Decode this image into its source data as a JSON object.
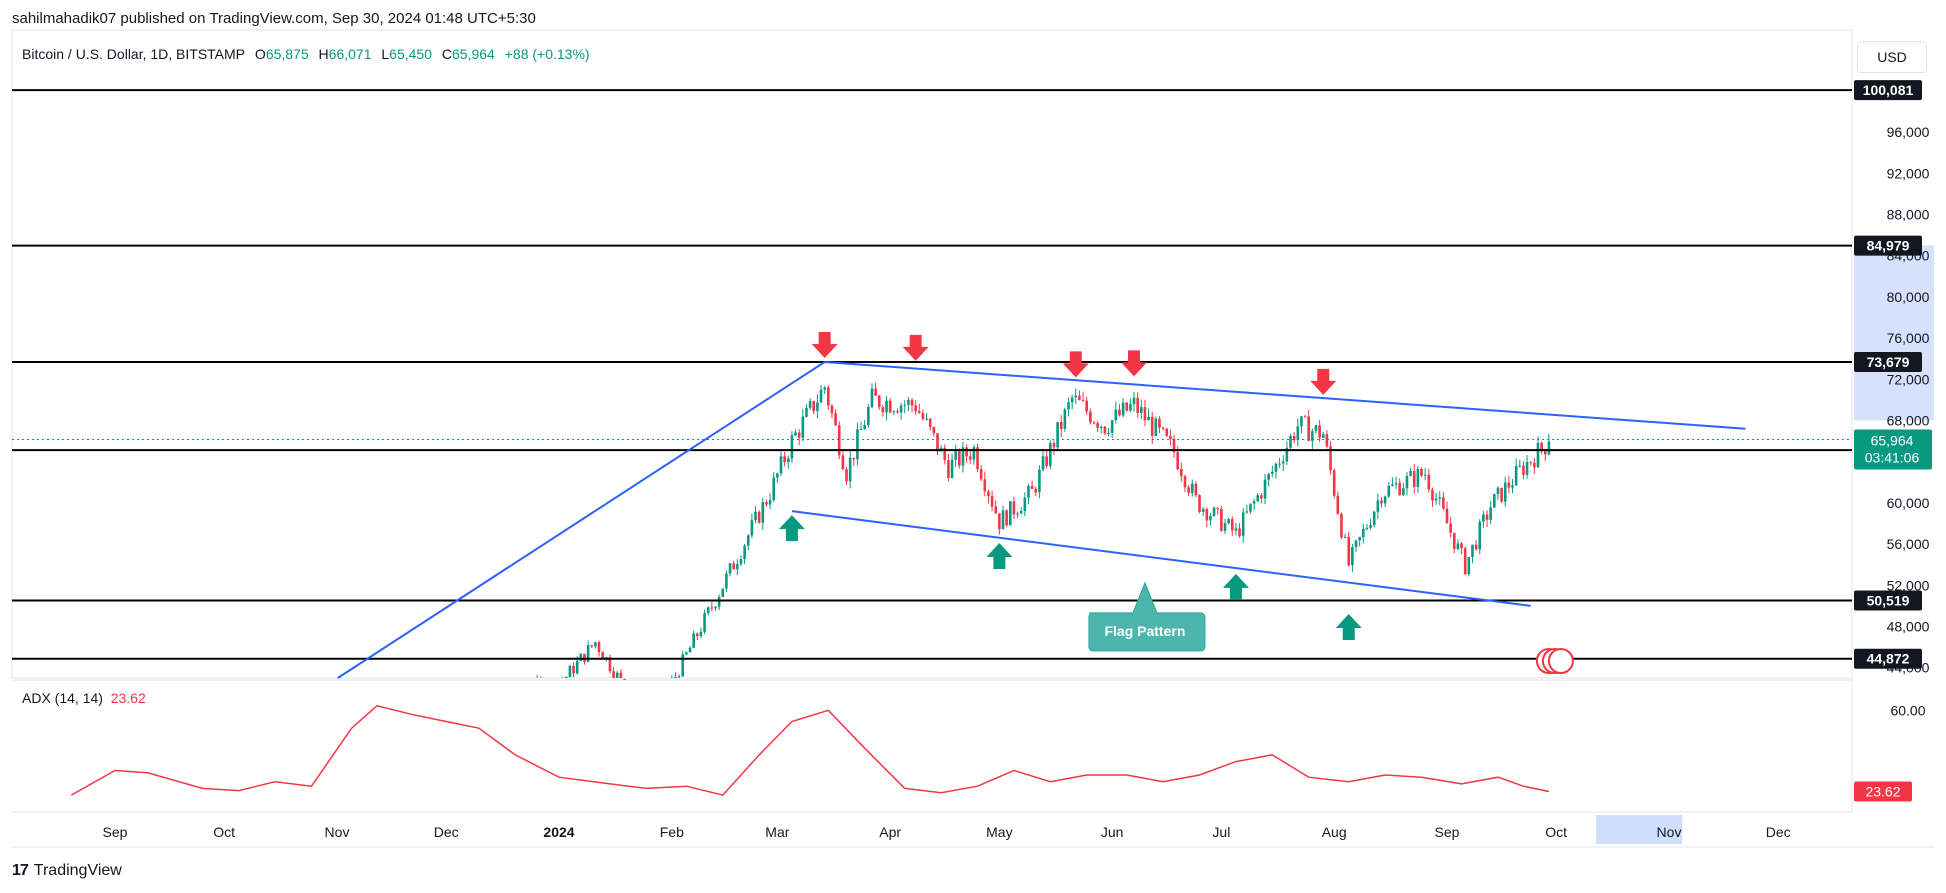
{
  "header": {
    "published": "sahilmahadik07 published on TradingView.com, Sep 30, 2024 01:48 UTC+5:30"
  },
  "legend": {
    "symbol": "Bitcoin / U.S. Dollar, 1D, BITSTAMP",
    "open_label": "O",
    "open": "65,875",
    "high_label": "H",
    "high": "66,071",
    "low_label": "L",
    "low": "65,450",
    "close_label": "C",
    "close": "65,964",
    "change": "+88 (+0.13%)"
  },
  "currency": "USD",
  "indicator": {
    "name": "ADX (14, 14)",
    "value": "23.62"
  },
  "footer": {
    "logo": "17",
    "brand": "TradingView"
  },
  "colors": {
    "up": "#089981",
    "down": "#f23645",
    "trendline": "#2962ff",
    "level": "#000000",
    "adx": "#f23645",
    "label_bg": "#131722",
    "flag_box": "#4db6ac",
    "highlight": "#c5d4fb"
  },
  "chart_data": {
    "type": "line",
    "title": "Bitcoin / U.S. Dollar, 1D, BITSTAMP",
    "x_ticks": [
      "Sep",
      "Oct",
      "Nov",
      "Dec",
      "2024",
      "Feb",
      "Mar",
      "Apr",
      "May",
      "Jun",
      "Jul",
      "Aug",
      "Sep",
      "Oct",
      "Nov",
      "Dec"
    ],
    "y_ticks": [
      "96,000",
      "92,000",
      "88,000",
      "84,000",
      "80,000",
      "76,000",
      "72,000",
      "68,000",
      "60,000",
      "56,000",
      "52,000",
      "48,000",
      "44,000"
    ],
    "ylim": [
      43000,
      103000
    ],
    "price_series": {
      "name": "BTCUSD",
      "x": [
        "2023-12-01",
        "2023-12-15",
        "2024-01-01",
        "2024-01-11",
        "2024-01-23",
        "2024-02-01",
        "2024-02-15",
        "2024-02-28",
        "2024-03-05",
        "2024-03-14",
        "2024-03-20",
        "2024-03-27",
        "2024-04-08",
        "2024-04-17",
        "2024-04-24",
        "2024-05-01",
        "2024-05-10",
        "2024-05-21",
        "2024-05-30",
        "2024-06-07",
        "2024-06-18",
        "2024-06-24",
        "2024-07-05",
        "2024-07-15",
        "2024-07-22",
        "2024-07-29",
        "2024-08-05",
        "2024-08-14",
        "2024-08-26",
        "2024-09-06",
        "2024-09-13",
        "2024-09-22",
        "2024-09-29"
      ],
      "close": [
        38700,
        41900,
        42300,
        46500,
        39800,
        42500,
        52000,
        61000,
        66000,
        71300,
        63000,
        70000,
        69500,
        63500,
        65200,
        58200,
        61000,
        70100,
        67500,
        69500,
        65000,
        60200,
        57000,
        63000,
        67500,
        66700,
        54000,
        61000,
        62900,
        53900,
        59700,
        63500,
        65964
      ]
    },
    "levels": [
      {
        "name": "level-100081",
        "value": 100081,
        "label": "100,081"
      },
      {
        "name": "level-84979",
        "value": 84979,
        "label": "84,979"
      },
      {
        "name": "level-73679",
        "value": 73679,
        "label": "73,679"
      },
      {
        "name": "level-65120",
        "value": 65120,
        "label": "65,120"
      },
      {
        "name": "level-50519",
        "value": 50519,
        "label": "50,519"
      },
      {
        "name": "level-44872",
        "value": 44872,
        "label": "44,872"
      }
    ],
    "last_price": {
      "value": 65964,
      "label": "65,964",
      "countdown": "03:41:06"
    },
    "trendlines": [
      {
        "name": "rally-trendline",
        "from": [
          "2023-10-20",
          40200
        ],
        "to": [
          "2024-03-14",
          73679
        ]
      },
      {
        "name": "flag-upper-trendline",
        "from": [
          "2024-03-14",
          73679
        ],
        "to": [
          "2024-11-22",
          67200
        ]
      },
      {
        "name": "flag-lower-trendline",
        "from": [
          "2024-03-05",
          59200
        ],
        "to": [
          "2024-09-24",
          50000
        ]
      }
    ],
    "annotation": {
      "label": "Flag Pattern",
      "date": "2024-06-10",
      "value": 50000
    },
    "down_arrows": [
      {
        "date": "2024-03-14",
        "value": 73679
      },
      {
        "date": "2024-04-08",
        "value": 73400
      },
      {
        "date": "2024-05-22",
        "value": 71800
      },
      {
        "date": "2024-06-07",
        "value": 71900
      },
      {
        "date": "2024-07-29",
        "value": 70100
      }
    ],
    "up_arrows": [
      {
        "date": "2024-03-05",
        "value": 59200
      },
      {
        "date": "2024-05-01",
        "value": 56500
      },
      {
        "date": "2024-07-05",
        "value": 53500
      },
      {
        "date": "2024-08-05",
        "value": 49600
      }
    ],
    "adx_series": {
      "name": "ADX (14, 14)",
      "ylim": [
        18,
        70
      ],
      "y_ticks": [
        "60.00"
      ],
      "x": [
        "2023-08-20",
        "2023-09-01",
        "2023-09-10",
        "2023-09-25",
        "2023-10-05",
        "2023-10-15",
        "2023-10-25",
        "2023-11-05",
        "2023-11-12",
        "2023-11-22",
        "2023-12-01",
        "2023-12-10",
        "2023-12-20",
        "2024-01-01",
        "2024-01-15",
        "2024-01-25",
        "2024-02-05",
        "2024-02-15",
        "2024-02-25",
        "2024-03-05",
        "2024-03-15",
        "2024-03-25",
        "2024-04-05",
        "2024-04-15",
        "2024-04-25",
        "2024-05-05",
        "2024-05-15",
        "2024-05-25",
        "2024-06-05",
        "2024-06-15",
        "2024-06-25",
        "2024-07-05",
        "2024-07-15",
        "2024-07-25",
        "2024-08-05",
        "2024-08-15",
        "2024-08-25",
        "2024-09-05",
        "2024-09-15",
        "2024-09-22",
        "2024-09-29"
      ],
      "values": [
        22,
        33,
        32,
        25,
        24,
        28,
        26,
        52,
        62,
        58,
        55,
        52,
        40,
        30,
        27,
        25,
        26,
        22,
        40,
        55,
        60,
        43,
        25,
        23,
        26,
        33,
        28,
        31,
        31,
        28,
        31,
        37,
        40,
        30,
        28,
        31,
        30,
        27,
        30,
        26,
        23.62
      ]
    }
  }
}
